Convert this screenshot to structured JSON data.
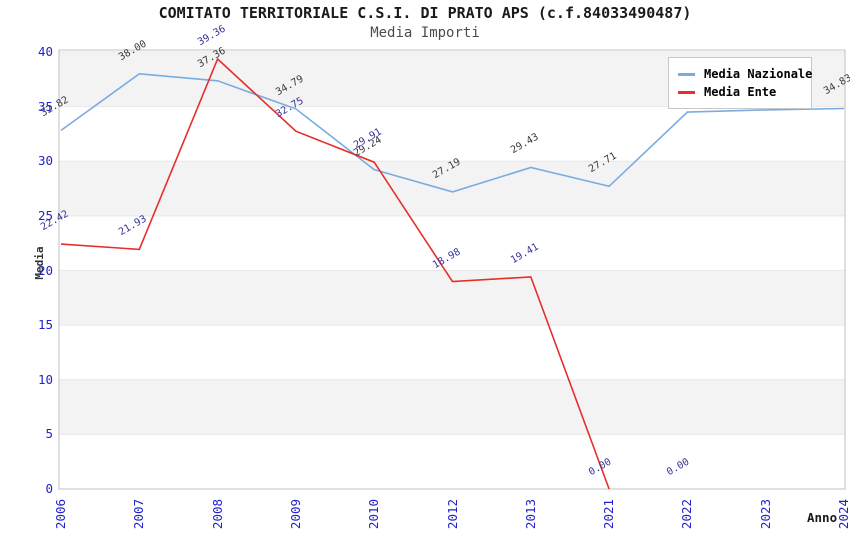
{
  "header": {
    "title": "COMITATO TERRITORIALE C.S.I. DI PRATO APS (c.f.84033490487)",
    "subtitle": "Media Importi"
  },
  "legend": {
    "position": "top-right",
    "items": [
      {
        "label": "Media Nazionale",
        "color": "#79acdf"
      },
      {
        "label": "Media Ente",
        "color": "#e62e2c"
      }
    ]
  },
  "axes": {
    "y_title": "Media",
    "x_title": "Anno",
    "y_ticks": [
      0,
      5,
      10,
      15,
      20,
      25,
      30,
      35,
      40
    ],
    "x_ticks": [
      "2006",
      "2007",
      "2008",
      "2009",
      "2010",
      "2012",
      "2013",
      "2021",
      "2022",
      "2023",
      "2024"
    ],
    "tick_color": "#2222cc"
  },
  "chart_data": {
    "type": "line",
    "title": "COMITATO TERRITORIALE C.S.I. DI PRATO APS (c.f.84033490487)",
    "subtitle": "Media Importi",
    "xlabel": "Anno",
    "ylabel": "Media",
    "ylim": [
      0,
      40.2
    ],
    "grid": "horizontal-bands",
    "gray_bands": [
      [
        5,
        10
      ],
      [
        15,
        20
      ],
      [
        25,
        30
      ],
      [
        35,
        40
      ]
    ],
    "band_color": "#f3f3f3",
    "gridline_color": "#e8e8e8",
    "border_color": "#c0c0c0",
    "categories": [
      "2006",
      "2007",
      "2008",
      "2009",
      "2010",
      "2012",
      "2013",
      "2021",
      "2022",
      "2023",
      "2024"
    ],
    "series": [
      {
        "name": "Media Nazionale",
        "color": "#79acdf",
        "label_color": "#3a3a3a",
        "values": [
          32.82,
          38.0,
          37.36,
          34.79,
          29.24,
          27.19,
          29.43,
          27.71,
          34.5,
          34.7,
          34.83
        ],
        "labels": [
          "32.82",
          "38.00",
          "37.36",
          "34.79",
          "29.24",
          "27.19",
          "29.43",
          "27.71",
          null,
          null,
          "34.83"
        ]
      },
      {
        "name": "Media Ente",
        "color": "#e62e2c",
        "label_color": "#333399",
        "values": [
          22.42,
          21.93,
          39.36,
          32.75,
          29.91,
          18.98,
          19.41,
          0.0,
          0.0,
          null,
          null
        ],
        "labels": [
          "22.42",
          "21.93",
          "39.36",
          "32.75",
          "29.91",
          "18.98",
          "19.41",
          "0.00",
          "0.00",
          null,
          null
        ],
        "line_end_index": 7
      }
    ]
  }
}
